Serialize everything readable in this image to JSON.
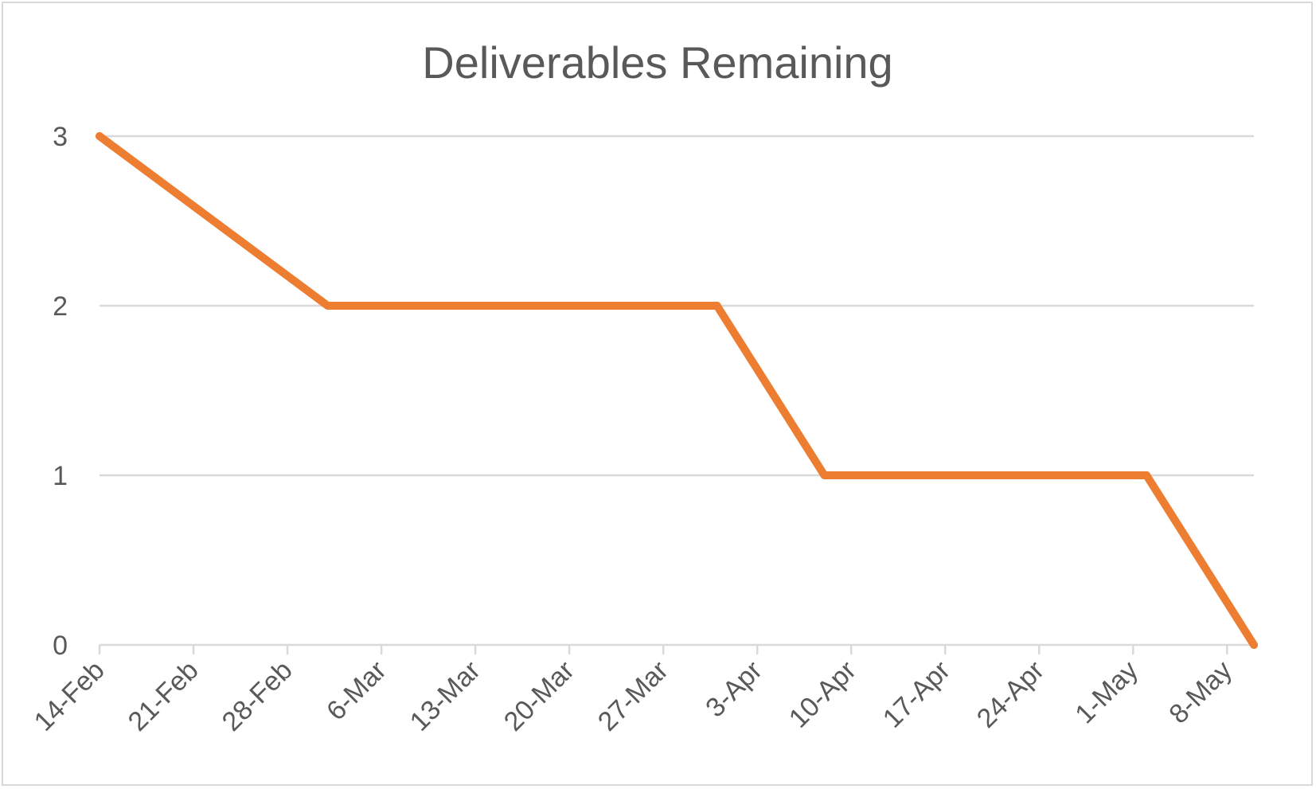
{
  "chart_data": {
    "type": "line",
    "title": "Deliverables Remaining",
    "xlabel": "",
    "ylabel": "",
    "x_axis_type": "date",
    "x_ticks": [
      "14-Feb",
      "21-Feb",
      "28-Feb",
      "6-Mar",
      "13-Mar",
      "20-Mar",
      "27-Mar",
      "3-Apr",
      "10-Apr",
      "17-Apr",
      "24-Apr",
      "1-May",
      "8-May"
    ],
    "y_ticks": [
      "0",
      "1",
      "2",
      "3"
    ],
    "ylim": [
      0,
      3
    ],
    "xlim": [
      "14-Feb",
      "10-May"
    ],
    "grid": "horizontal",
    "legend": "none",
    "series": [
      {
        "color": "#ed7d31",
        "points": [
          {
            "x": "14-Feb",
            "y": 3
          },
          {
            "x": "2-Mar",
            "y": 2
          },
          {
            "x": "31-Mar",
            "y": 2
          },
          {
            "x": "8-Apr",
            "y": 1
          },
          {
            "x": "2-May",
            "y": 1
          },
          {
            "x": "10-May",
            "y": 0
          }
        ]
      }
    ]
  }
}
